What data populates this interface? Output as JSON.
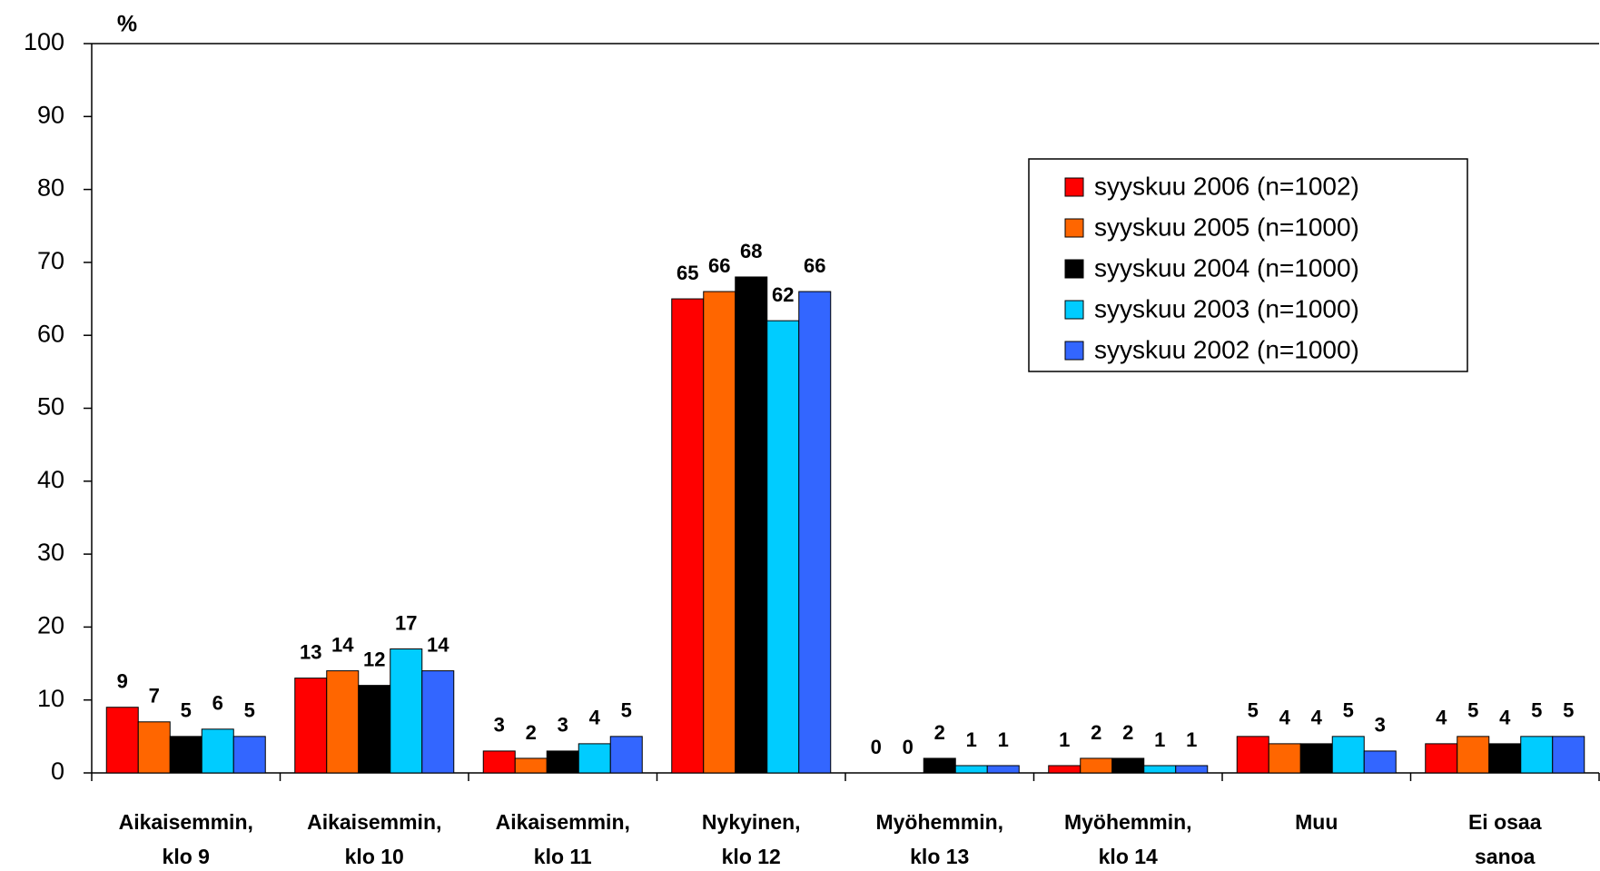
{
  "chart_data": {
    "type": "bar",
    "y_label": "%",
    "categories": [
      "Aikaisemmin,\nklo 9",
      "Aikaisemmin,\nklo 10",
      "Aikaisemmin,\nklo 11",
      "Nykyinen,\nklo 12",
      "Myöhemmin,\nklo 13",
      "Myöhemmin,\nklo 14",
      "Muu",
      "Ei osaa\nsanoa"
    ],
    "series": [
      {
        "name": "syyskuu 2006 (n=1002)",
        "color": "#ff0000",
        "values": [
          9,
          13,
          3,
          65,
          0,
          1,
          5,
          4
        ]
      },
      {
        "name": "syyskuu 2005 (n=1000)",
        "color": "#ff6600",
        "values": [
          7,
          14,
          2,
          66,
          0,
          2,
          4,
          5
        ]
      },
      {
        "name": "syyskuu 2004 (n=1000)",
        "color": "#000000",
        "values": [
          5,
          12,
          3,
          68,
          2,
          2,
          4,
          4
        ]
      },
      {
        "name": "syyskuu 2003 (n=1000)",
        "color": "#00ccff",
        "values": [
          6,
          17,
          4,
          62,
          1,
          1,
          5,
          5
        ]
      },
      {
        "name": "syyskuu 2002 (n=1000)",
        "color": "#3366ff",
        "values": [
          5,
          14,
          5,
          66,
          1,
          1,
          3,
          5
        ]
      }
    ],
    "ylim": [
      0,
      100
    ],
    "yticks": [
      0,
      10,
      20,
      30,
      40,
      50,
      60,
      70,
      80,
      90,
      100
    ],
    "grid": false,
    "legend": "upper right"
  }
}
